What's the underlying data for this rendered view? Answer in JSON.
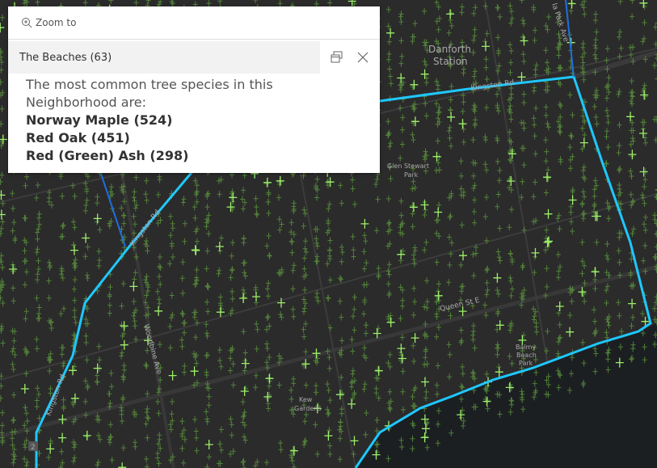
{
  "popup": {
    "zoom_label": "Zoom to",
    "title": "The Beaches (63)",
    "intro": "The most common tree species in this Neighborhood are:",
    "species": [
      "Norway Maple (524)",
      "Red Oak (451)",
      "Red (Green) Ash (298)"
    ]
  },
  "map": {
    "labels": {
      "danforth1": "Danforth",
      "danforth2": "Station",
      "kingston_top": "Kingston Rd",
      "kingston_mid": "Kingston Rd",
      "kingston_low": "Kingston Rd",
      "park_ave": "la Park Ave",
      "glen1": "Glen Stewart",
      "glen2": "Park",
      "queen": "Queen St E",
      "balmy1": "Balmy",
      "balmy2": "Beach",
      "balmy3": "Park",
      "kew1": "Kew",
      "kew2": "Gardens",
      "woodbine": "Woodbine Ave",
      "shield": "2"
    },
    "colors": {
      "background": "#2b2b2b",
      "boundary": "#1ec8ff",
      "tree": "#7ed957",
      "water": "#1c1f22"
    }
  }
}
